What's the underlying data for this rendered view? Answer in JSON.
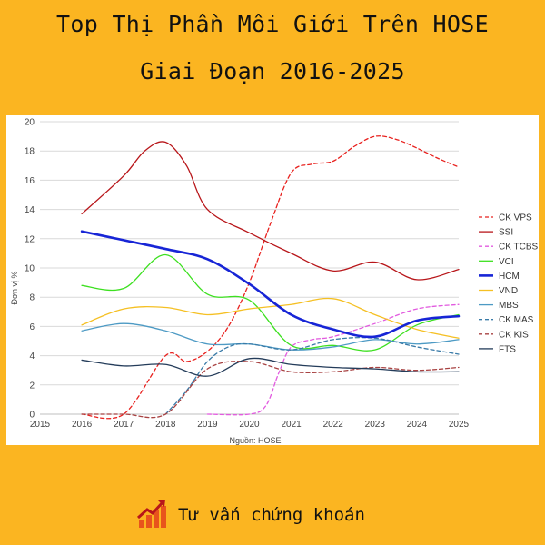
{
  "title_line1": "Top Thị Phần Môi Giới Trên HOSE",
  "title_line2": "Giai Đoạn 2016-2025",
  "footer_label": "Tư vấn chứng khoán",
  "footer_icon": "growth-chart-icon",
  "chart_data": {
    "type": "line",
    "ylabel": "Đơn vị %",
    "source": "Nguồn: HOSE",
    "xlim": [
      2015,
      2025
    ],
    "ylim": [
      0,
      20
    ],
    "xticks": [
      2015,
      2016,
      2017,
      2018,
      2019,
      2020,
      2021,
      2022,
      2023,
      2024,
      2025
    ],
    "yticks": [
      0,
      2,
      4,
      6,
      8,
      10,
      12,
      14,
      16,
      18,
      20
    ],
    "grid": "horizontal",
    "legend_position": "right",
    "series": [
      {
        "name": "CK VPS",
        "color": "#E8211E",
        "dashed": true,
        "width": 1.3,
        "x": [
          2016,
          2017,
          2018,
          2018.5,
          2019,
          2019.5,
          2020,
          2020.5,
          2021,
          2021.5,
          2022,
          2022.5,
          2023,
          2023.5,
          2024,
          2024.5,
          2025
        ],
        "y": [
          0,
          0,
          4,
          3.6,
          4.3,
          6,
          9,
          13,
          16.5,
          17.1,
          17.3,
          18.3,
          19.0,
          18.8,
          18.2,
          17.5,
          16.9
        ]
      },
      {
        "name": "SSI",
        "color": "#B8161A",
        "dashed": false,
        "width": 1.3,
        "x": [
          2016,
          2017,
          2017.5,
          2018,
          2018.5,
          2019,
          2020,
          2021,
          2022,
          2023,
          2024,
          2025
        ],
        "y": [
          13.7,
          16.3,
          18.0,
          18.6,
          17.0,
          14.0,
          12.4,
          11.0,
          9.8,
          10.4,
          9.2,
          9.9
        ]
      },
      {
        "name": "CK TCBS",
        "color": "#E25BDF",
        "dashed": true,
        "width": 1.3,
        "x": [
          2019,
          2020,
          2020.4,
          2020.7,
          2021,
          2021.5,
          2022,
          2023,
          2024,
          2025
        ],
        "y": [
          0,
          0,
          0.6,
          2.8,
          4.6,
          5.1,
          5.3,
          6.2,
          7.2,
          7.5
        ]
      },
      {
        "name": "VCI",
        "color": "#3DE020",
        "dashed": false,
        "width": 1.3,
        "x": [
          2016,
          2017,
          2018,
          2019,
          2020,
          2021,
          2022,
          2023,
          2024,
          2025
        ],
        "y": [
          8.8,
          8.6,
          10.9,
          8.2,
          7.8,
          4.7,
          4.7,
          4.4,
          6.1,
          6.8
        ]
      },
      {
        "name": "HCM",
        "color": "#1725D6",
        "dashed": false,
        "width": 2.6,
        "x": [
          2016,
          2017,
          2018,
          2019,
          2020,
          2021,
          2022,
          2023,
          2024,
          2025
        ],
        "y": [
          12.5,
          11.9,
          11.3,
          10.6,
          8.9,
          6.8,
          5.8,
          5.3,
          6.4,
          6.7
        ]
      },
      {
        "name": "VND",
        "color": "#F5C024",
        "dashed": false,
        "width": 1.3,
        "x": [
          2016,
          2017,
          2018,
          2019,
          2020,
          2021,
          2022,
          2023,
          2024,
          2025
        ],
        "y": [
          6.1,
          7.2,
          7.3,
          6.8,
          7.2,
          7.5,
          7.9,
          6.8,
          5.8,
          5.2
        ]
      },
      {
        "name": "MBS",
        "color": "#4D9AC4",
        "dashed": false,
        "width": 1.3,
        "x": [
          2016,
          2017,
          2018,
          2019,
          2020,
          2021,
          2022,
          2023,
          2024,
          2025
        ],
        "y": [
          5.7,
          6.2,
          5.7,
          4.8,
          4.8,
          4.4,
          4.6,
          5.1,
          4.8,
          5.1
        ]
      },
      {
        "name": "CK MAS",
        "color": "#3A7BA8",
        "dashed": true,
        "width": 1.3,
        "x": [
          2018,
          2018.5,
          2019,
          2019.5,
          2020,
          2021,
          2022,
          2023,
          2024,
          2025
        ],
        "y": [
          0,
          1.6,
          3.6,
          4.6,
          4.8,
          4.4,
          5.1,
          5.2,
          4.6,
          4.1
        ]
      },
      {
        "name": "CK KIS",
        "color": "#A84242",
        "dashed": true,
        "width": 1.3,
        "x": [
          2016,
          2017,
          2018,
          2019,
          2020,
          2021,
          2022,
          2023,
          2024,
          2025
        ],
        "y": [
          0,
          0,
          0,
          3.1,
          3.6,
          2.9,
          2.9,
          3.2,
          3.0,
          3.2
        ]
      },
      {
        "name": "FTS",
        "color": "#243C5A",
        "dashed": false,
        "width": 1.3,
        "x": [
          2016,
          2017,
          2018,
          2019,
          2020,
          2021,
          2022,
          2023,
          2024,
          2025
        ],
        "y": [
          3.7,
          3.3,
          3.4,
          2.6,
          3.8,
          3.4,
          3.2,
          3.1,
          2.9,
          2.9
        ]
      }
    ]
  }
}
